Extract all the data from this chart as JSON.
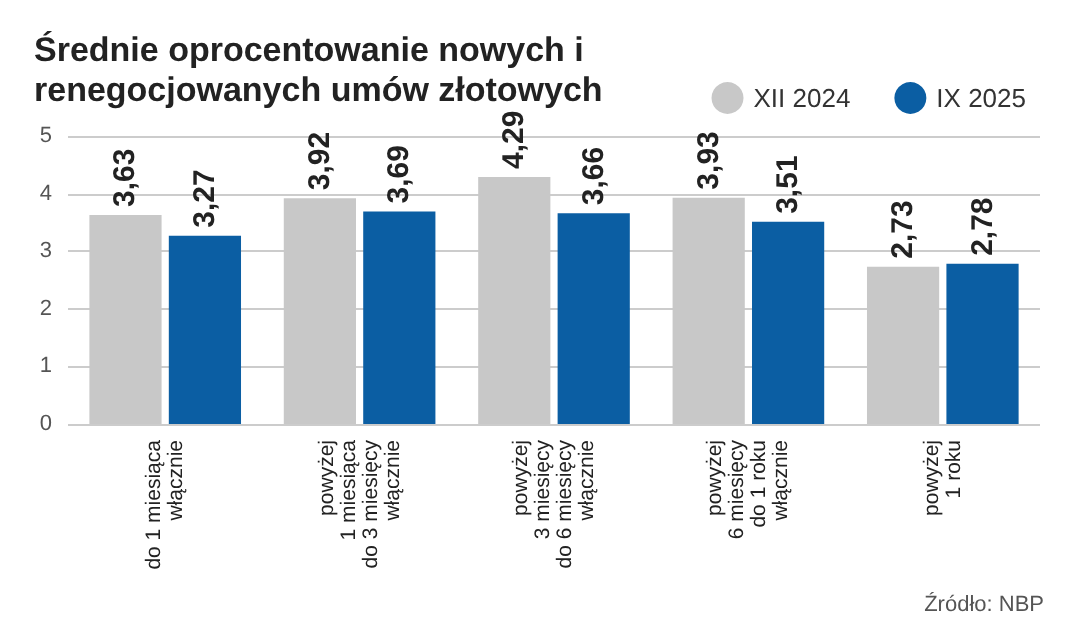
{
  "chart_data": {
    "type": "bar",
    "title": "Średnie oprocentowanie nowych i renegocjowanych umów złotowych",
    "categories": [
      "do 1 miesiąca\nwłącznie",
      "powyżej\n1 miesiąca\ndo 3 miesięcy\nwłącznie",
      "powyżej\n3 miesięcy\ndo 6 miesięcy\nwłącznie",
      "powyżej\n6 miesięcy\ndo 1 roku\nwłącznie",
      "powyżej\n1 roku"
    ],
    "series": [
      {
        "name": "XII 2024",
        "color": "#c8c8c8",
        "values": [
          3.63,
          3.92,
          4.29,
          3.93,
          2.73
        ],
        "value_labels": [
          "3,63",
          "3,92",
          "4,29",
          "3,93",
          "2,73"
        ]
      },
      {
        "name": "IX 2025",
        "color": "#0b5ea3",
        "values": [
          3.27,
          3.69,
          3.66,
          3.51,
          2.78
        ],
        "value_labels": [
          "3,27",
          "3,69",
          "3,66",
          "3,51",
          "2,78"
        ]
      }
    ],
    "ylim": [
      0,
      5
    ],
    "yticks": [
      0,
      1,
      2,
      3,
      4,
      5
    ],
    "grid": "y",
    "legend": "top right",
    "annotations": [
      "Źródło: NBP"
    ]
  }
}
